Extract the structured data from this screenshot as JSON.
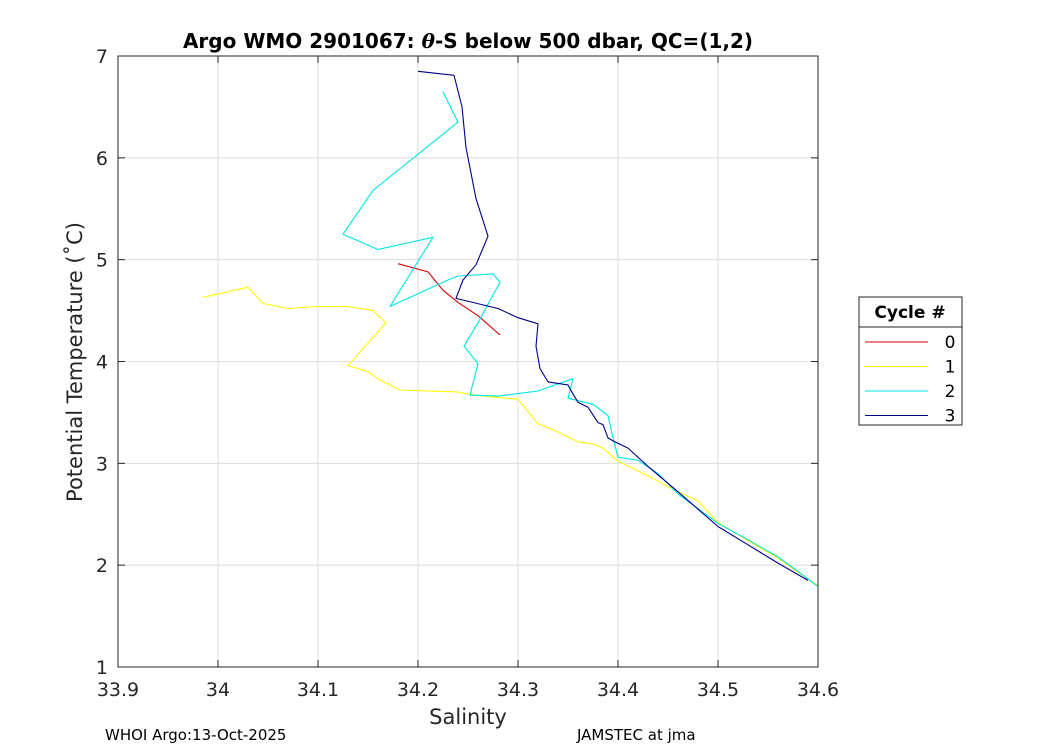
{
  "chart_data": {
    "type": "line",
    "title_prefix": "Argo WMO 2901067: ",
    "title_symbol": "θ",
    "title_suffix": "-S below 500 dbar,  QC=(1,2)",
    "xlabel": "Salinity",
    "ylabel": "Potential Temperature (˚C)",
    "xlim": [
      33.9,
      34.6
    ],
    "ylim": [
      1,
      7
    ],
    "xticks": [
      "33.9",
      "34",
      "34.1",
      "34.2",
      "34.3",
      "34.4",
      "34.5",
      "34.6"
    ],
    "yticks": [
      "1",
      "2",
      "3",
      "4",
      "5",
      "6",
      "7"
    ],
    "grid": true,
    "legend": {
      "title": "Cycle #",
      "placement": "right-outside"
    },
    "series": [
      {
        "name": "0",
        "color": "#d40000",
        "x": [
          34.18,
          34.21,
          34.225,
          34.24,
          34.26,
          34.282
        ],
        "y": [
          4.96,
          4.88,
          4.7,
          4.58,
          4.45,
          4.26
        ]
      },
      {
        "name": "1",
        "color": "#ffff00",
        "x": [
          33.985,
          34.03,
          34.045,
          34.07,
          34.1,
          34.13,
          34.155,
          34.168,
          34.13,
          34.15,
          34.16,
          34.182,
          34.21,
          34.24,
          34.25,
          34.265,
          34.3,
          34.32,
          34.335,
          34.36,
          34.375,
          34.385,
          34.4,
          34.43,
          34.45,
          34.48,
          34.5,
          34.53,
          34.56,
          34.58,
          34.6
        ],
        "y": [
          4.63,
          4.73,
          4.57,
          4.52,
          4.54,
          4.54,
          4.5,
          4.38,
          3.96,
          3.9,
          3.83,
          3.72,
          3.71,
          3.7,
          3.68,
          3.66,
          3.63,
          3.39,
          3.33,
          3.21,
          3.19,
          3.15,
          3.02,
          2.88,
          2.77,
          2.63,
          2.42,
          2.24,
          2.07,
          1.93,
          1.8
        ]
      },
      {
        "name": "2",
        "color": "#00e5e5",
        "x": [
          34.225,
          34.24,
          34.155,
          34.125,
          34.16,
          34.215,
          34.172,
          34.23,
          34.24,
          34.275,
          34.282,
          34.26,
          34.246,
          34.26,
          34.252,
          34.28,
          34.32,
          34.34,
          34.355,
          34.35,
          34.375,
          34.39,
          34.395,
          34.4,
          34.42,
          34.44,
          34.46,
          34.5,
          34.53,
          34.56,
          34.58,
          34.6
        ],
        "y": [
          6.65,
          6.35,
          5.68,
          5.25,
          5.1,
          5.22,
          4.54,
          4.8,
          4.84,
          4.86,
          4.78,
          4.38,
          4.15,
          3.98,
          3.67,
          3.66,
          3.71,
          3.78,
          3.83,
          3.64,
          3.58,
          3.47,
          3.25,
          3.06,
          3.03,
          2.9,
          2.7,
          2.41,
          2.25,
          2.08,
          1.94,
          1.79
        ]
      },
      {
        "name": "3",
        "color": "#00008b",
        "x": [
          34.2,
          34.236,
          34.244,
          34.248,
          34.258,
          34.27,
          34.258,
          34.245,
          34.238,
          34.28,
          34.3,
          34.32,
          34.318,
          34.322,
          34.33,
          34.35,
          34.355,
          34.36,
          34.37,
          34.38,
          34.385,
          34.39,
          34.395,
          34.41,
          34.43,
          34.46,
          34.5,
          34.53,
          34.56,
          34.59
        ],
        "y": [
          6.85,
          6.81,
          6.5,
          6.1,
          5.6,
          5.23,
          4.95,
          4.8,
          4.62,
          4.52,
          4.43,
          4.37,
          4.15,
          3.93,
          3.8,
          3.77,
          3.68,
          3.6,
          3.55,
          3.4,
          3.38,
          3.25,
          3.22,
          3.15,
          2.97,
          2.72,
          2.38,
          2.2,
          2.02,
          1.85
        ]
      }
    ]
  },
  "footer": {
    "left": "WHOI Argo:13-Oct-2025",
    "right": "JAMSTEC at jma"
  }
}
